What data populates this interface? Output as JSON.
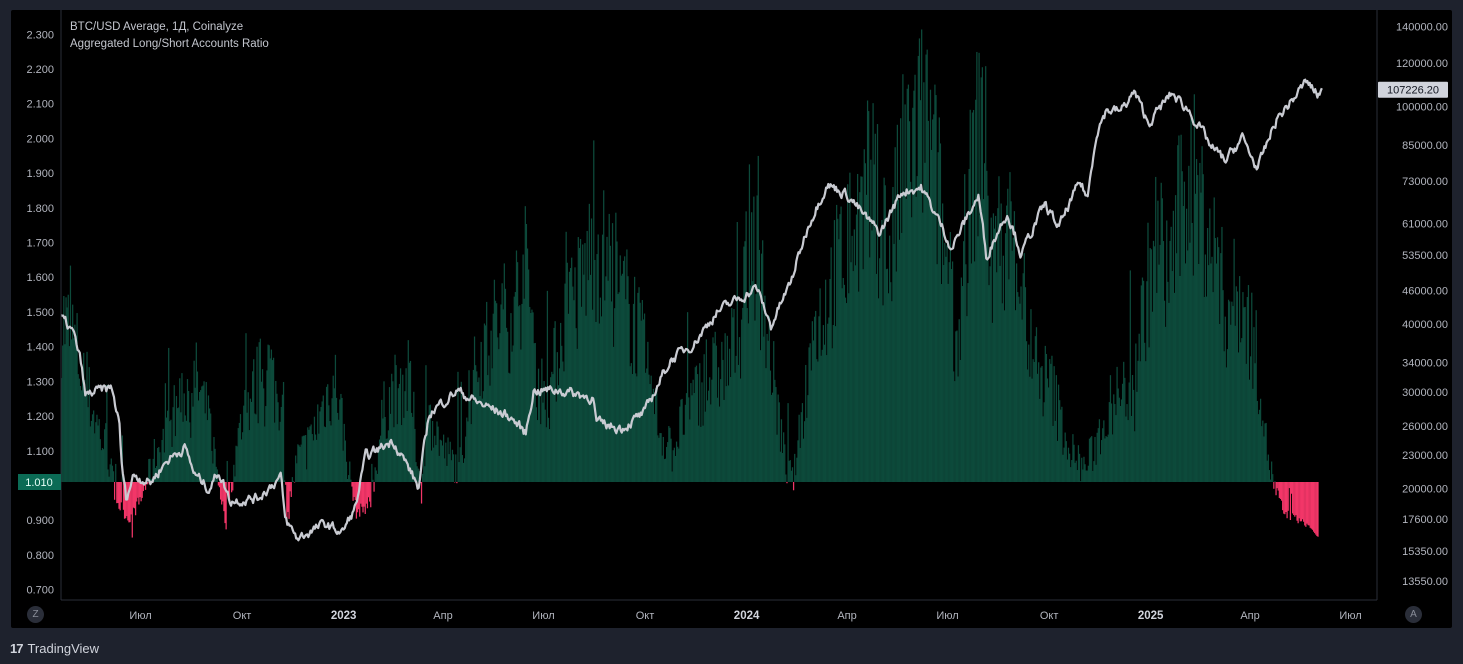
{
  "legend": {
    "line1": "BTC/USD Average, 1Д, Coinalyze",
    "line2": "Aggregated Long/Short Accounts Ratio"
  },
  "footer": {
    "logo_glyph": "17",
    "brand": "TradingView"
  },
  "buttons": {
    "left": "Z",
    "right": "A"
  },
  "colors": {
    "positive": "#0d4a3b",
    "negative": "#f23668",
    "price_line": "#c9cbd2",
    "current_label_bg": "#d1d4dc",
    "ratio_label_bg": "#0b6b55"
  },
  "chart_data": {
    "type": "bar",
    "title": "Aggregated Long/Short Accounts Ratio",
    "baseline": 1.01,
    "baseline_label": "1.010",
    "left_axis": {
      "ticks": [
        "2.300",
        "2.200",
        "2.100",
        "2.000",
        "1.900",
        "1.800",
        "1.700",
        "1.600",
        "1.500",
        "1.400",
        "1.300",
        "1.200",
        "1.100",
        "0.900",
        "0.800",
        "0.700"
      ],
      "range": [
        0.67,
        2.37
      ]
    },
    "right_axis": {
      "scale": "log",
      "ticks": [
        "140000.00",
        "120000.00",
        "100000.00",
        "85000.00",
        "73000.00",
        "61000.00",
        "53500.00",
        "46000.00",
        "40000.00",
        "34000.00",
        "30000.00",
        "26000.00",
        "23000.00",
        "20000.00",
        "17600.00",
        "15350.00",
        "13550.00"
      ],
      "current_price": "107226.20"
    },
    "x_axis": {
      "labels": [
        {
          "text": "Июл",
          "bold": false
        },
        {
          "text": "Окт",
          "bold": false
        },
        {
          "text": "2023",
          "bold": true
        },
        {
          "text": "Апр",
          "bold": false
        },
        {
          "text": "Июл",
          "bold": false
        },
        {
          "text": "Окт",
          "bold": false
        },
        {
          "text": "2024",
          "bold": true
        },
        {
          "text": "Апр",
          "bold": false
        },
        {
          "text": "Июл",
          "bold": false
        },
        {
          "text": "Окт",
          "bold": false
        },
        {
          "text": "2025",
          "bold": true
        },
        {
          "text": "Апр",
          "bold": false
        },
        {
          "text": "Июл",
          "bold": false
        }
      ],
      "range": [
        "2022-04-20",
        "2025-07-25"
      ]
    },
    "ratio_series": {
      "name": "Aggregated Long/Short Accounts Ratio",
      "anchors": [
        [
          "2022-04-20",
          1.48
        ],
        [
          "2022-05-01",
          1.42
        ],
        [
          "2022-05-10",
          1.3
        ],
        [
          "2022-05-20",
          1.2
        ],
        [
          "2022-06-01",
          1.08
        ],
        [
          "2022-06-10",
          0.95
        ],
        [
          "2022-06-20",
          0.9
        ],
        [
          "2022-07-01",
          0.96
        ],
        [
          "2022-07-15",
          1.1
        ],
        [
          "2022-07-25",
          1.15
        ],
        [
          "2022-08-05",
          1.25
        ],
        [
          "2022-08-20",
          1.3
        ],
        [
          "2022-09-01",
          1.18
        ],
        [
          "2022-09-15",
          0.9
        ],
        [
          "2022-10-01",
          1.2
        ],
        [
          "2022-10-15",
          1.3
        ],
        [
          "2022-10-25",
          1.35
        ],
        [
          "2022-11-05",
          1.2
        ],
        [
          "2022-11-10",
          0.92
        ],
        [
          "2022-11-20",
          1.08
        ],
        [
          "2022-12-01",
          1.12
        ],
        [
          "2022-12-15",
          1.25
        ],
        [
          "2022-12-25",
          1.3
        ],
        [
          "2023-01-05",
          1.05
        ],
        [
          "2023-01-12",
          0.92
        ],
        [
          "2023-01-25",
          0.95
        ],
        [
          "2023-02-05",
          1.2
        ],
        [
          "2023-02-15",
          1.28
        ],
        [
          "2023-03-01",
          1.3
        ],
        [
          "2023-03-12",
          0.98
        ],
        [
          "2023-03-20",
          1.2
        ],
        [
          "2023-04-01",
          1.1
        ],
        [
          "2023-04-15",
          1.05
        ],
        [
          "2023-05-01",
          1.35
        ],
        [
          "2023-05-15",
          1.45
        ],
        [
          "2023-06-01",
          1.5
        ],
        [
          "2023-06-15",
          1.62
        ],
        [
          "2023-06-25",
          1.3
        ],
        [
          "2023-07-05",
          1.25
        ],
        [
          "2023-07-20",
          1.5
        ],
        [
          "2023-08-01",
          1.55
        ],
        [
          "2023-08-15",
          1.7
        ],
        [
          "2023-08-25",
          1.65
        ],
        [
          "2023-09-05",
          1.55
        ],
        [
          "2023-09-20",
          1.5
        ],
        [
          "2023-10-01",
          1.35
        ],
        [
          "2023-10-15",
          1.15
        ],
        [
          "2023-10-25",
          1.1
        ],
        [
          "2023-11-05",
          1.2
        ],
        [
          "2023-11-20",
          1.28
        ],
        [
          "2023-12-01",
          1.32
        ],
        [
          "2023-12-15",
          1.35
        ],
        [
          "2023-12-25",
          1.45
        ],
        [
          "2024-01-05",
          1.75
        ],
        [
          "2024-01-15",
          1.55
        ],
        [
          "2024-01-25",
          1.3
        ],
        [
          "2024-02-05",
          1.05
        ],
        [
          "2024-02-12",
          1.02
        ],
        [
          "2024-02-20",
          1.2
        ],
        [
          "2024-03-01",
          1.45
        ],
        [
          "2024-03-10",
          1.5
        ],
        [
          "2024-03-20",
          1.6
        ],
        [
          "2024-04-01",
          1.7
        ],
        [
          "2024-04-15",
          1.8
        ],
        [
          "2024-04-25",
          1.85
        ],
        [
          "2024-05-10",
          1.65
        ],
        [
          "2024-05-20",
          1.9
        ],
        [
          "2024-06-01",
          2.0
        ],
        [
          "2024-06-10",
          2.05
        ],
        [
          "2024-06-20",
          1.9
        ],
        [
          "2024-07-01",
          1.6
        ],
        [
          "2024-07-10",
          1.4
        ],
        [
          "2024-07-20",
          1.8
        ],
        [
          "2024-08-01",
          2.1
        ],
        [
          "2024-08-10",
          1.6
        ],
        [
          "2024-08-20",
          1.75
        ],
        [
          "2024-09-01",
          1.7
        ],
        [
          "2024-09-10",
          1.45
        ],
        [
          "2024-09-20",
          1.3
        ],
        [
          "2024-10-01",
          1.3
        ],
        [
          "2024-10-10",
          1.2
        ],
        [
          "2024-10-20",
          1.1
        ],
        [
          "2024-11-01",
          1.05
        ],
        [
          "2024-11-10",
          1.1
        ],
        [
          "2024-11-20",
          1.2
        ],
        [
          "2024-12-01",
          1.25
        ],
        [
          "2024-12-15",
          1.3
        ],
        [
          "2024-12-25",
          1.5
        ],
        [
          "2025-01-05",
          1.7
        ],
        [
          "2025-01-15",
          1.6
        ],
        [
          "2025-01-25",
          1.75
        ],
        [
          "2025-02-05",
          1.9
        ],
        [
          "2025-02-15",
          1.8
        ],
        [
          "2025-02-25",
          1.7
        ],
        [
          "2025-03-10",
          1.5
        ],
        [
          "2025-03-20",
          1.55
        ],
        [
          "2025-04-01",
          1.45
        ],
        [
          "2025-04-10",
          1.3
        ],
        [
          "2025-04-15",
          1.12
        ],
        [
          "2025-04-22",
          1.0
        ],
        [
          "2025-05-01",
          0.92
        ],
        [
          "2025-05-15",
          0.9
        ],
        [
          "2025-05-25",
          0.88
        ],
        [
          "2025-06-01",
          0.85
        ]
      ]
    },
    "price_series": {
      "name": "BTC/USD Average",
      "anchors": [
        [
          "2022-04-20",
          41000
        ],
        [
          "2022-05-01",
          38500
        ],
        [
          "2022-05-08",
          34000
        ],
        [
          "2022-05-12",
          29500
        ],
        [
          "2022-05-20",
          30000
        ],
        [
          "2022-06-05",
          30500
        ],
        [
          "2022-06-12",
          26000
        ],
        [
          "2022-06-14",
          22000
        ],
        [
          "2022-06-18",
          19200
        ],
        [
          "2022-06-25",
          21200
        ],
        [
          "2022-07-10",
          20500
        ],
        [
          "2022-07-25",
          22500
        ],
        [
          "2022-08-10",
          23800
        ],
        [
          "2022-08-19",
          21200
        ],
        [
          "2022-09-01",
          20000
        ],
        [
          "2022-09-10",
          21500
        ],
        [
          "2022-09-20",
          19000
        ],
        [
          "2022-10-15",
          19200
        ],
        [
          "2022-11-05",
          21000
        ],
        [
          "2022-11-09",
          17500
        ],
        [
          "2022-11-20",
          16200
        ],
        [
          "2022-12-15",
          17200
        ],
        [
          "2022-12-31",
          16600
        ],
        [
          "2023-01-12",
          18500
        ],
        [
          "2023-01-21",
          22800
        ],
        [
          "2023-02-15",
          24500
        ],
        [
          "2023-03-10",
          20000
        ],
        [
          "2023-03-20",
          27500
        ],
        [
          "2023-04-14",
          30200
        ],
        [
          "2023-05-01",
          28800
        ],
        [
          "2023-06-01",
          27000
        ],
        [
          "2023-06-15",
          25200
        ],
        [
          "2023-06-22",
          30200
        ],
        [
          "2023-07-15",
          30300
        ],
        [
          "2023-08-15",
          29300
        ],
        [
          "2023-08-18",
          26300
        ],
        [
          "2023-09-10",
          25800
        ],
        [
          "2023-10-01",
          27500
        ],
        [
          "2023-10-24",
          34300
        ],
        [
          "2023-11-15",
          37000
        ],
        [
          "2023-12-05",
          42000
        ],
        [
          "2024-01-10",
          46500
        ],
        [
          "2024-01-23",
          39500
        ],
        [
          "2024-02-10",
          47500
        ],
        [
          "2024-02-28",
          62000
        ],
        [
          "2024-03-14",
          72000
        ],
        [
          "2024-04-01",
          69000
        ],
        [
          "2024-04-18",
          62500
        ],
        [
          "2024-05-01",
          58500
        ],
        [
          "2024-05-21",
          70000
        ],
        [
          "2024-06-07",
          71000
        ],
        [
          "2024-07-05",
          55000
        ],
        [
          "2024-07-29",
          68500
        ],
        [
          "2024-08-05",
          53000
        ],
        [
          "2024-08-24",
          64000
        ],
        [
          "2024-09-06",
          53500
        ],
        [
          "2024-09-27",
          66000
        ],
        [
          "2024-10-10",
          60000
        ],
        [
          "2024-10-29",
          72500
        ],
        [
          "2024-11-05",
          68000
        ],
        [
          "2024-11-13",
          90000
        ],
        [
          "2024-11-22",
          98500
        ],
        [
          "2024-12-05",
          98000
        ],
        [
          "2024-12-17",
          106000
        ],
        [
          "2024-12-30",
          93000
        ],
        [
          "2025-01-20",
          105500
        ],
        [
          "2025-02-05",
          98000
        ],
        [
          "2025-02-25",
          84000
        ],
        [
          "2025-03-10",
          79500
        ],
        [
          "2025-03-25",
          87500
        ],
        [
          "2025-04-08",
          76500
        ],
        [
          "2025-04-25",
          94500
        ],
        [
          "2025-05-10",
          103000
        ],
        [
          "2025-05-22",
          111000
        ],
        [
          "2025-06-01",
          105000
        ],
        [
          "2025-06-05",
          107226
        ]
      ]
    }
  }
}
